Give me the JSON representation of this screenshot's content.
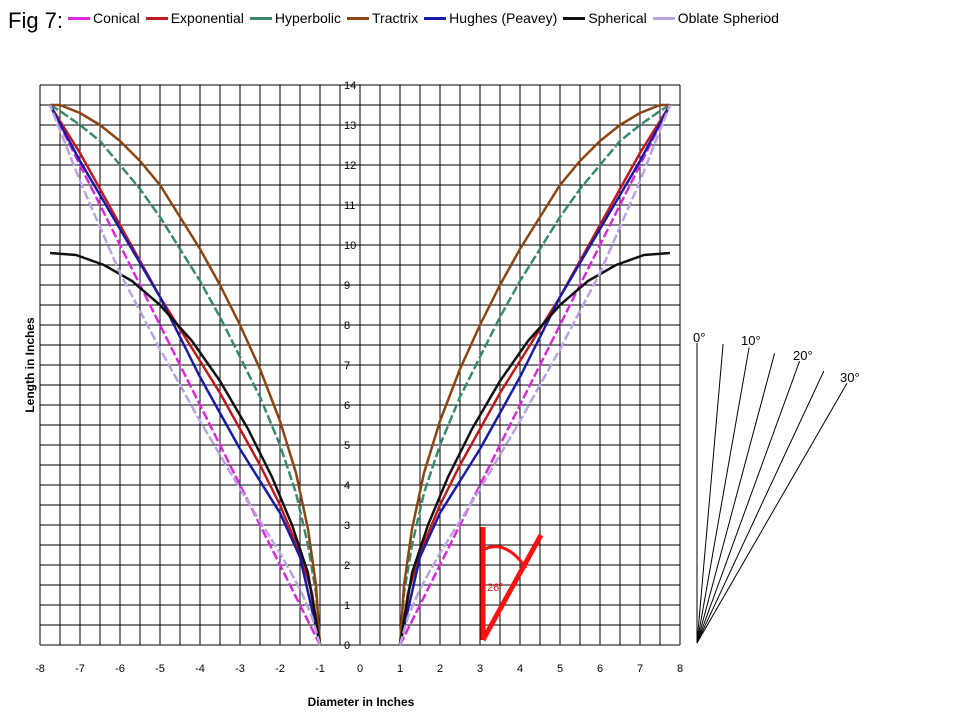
{
  "figure_label": "Fig 7:",
  "chart_data": {
    "type": "line",
    "xlabel": "Diameter in Inches",
    "ylabel": "Length in Inches",
    "xlim": [
      -8,
      8
    ],
    "ylim": [
      0,
      14
    ],
    "x_ticks": [
      "-8",
      "-7",
      "-6",
      "-5",
      "-4",
      "-3",
      "-2",
      "-1",
      "0",
      "1",
      "2",
      "3",
      "4",
      "5",
      "6",
      "7",
      "8"
    ],
    "y_ticks": [
      "0",
      "1",
      "2",
      "3",
      "4",
      "5",
      "6",
      "7",
      "8",
      "9",
      "10",
      "11",
      "12",
      "13",
      "14"
    ],
    "grid": true,
    "legend": "top",
    "series": [
      {
        "name": "Conical",
        "color": "#d92bd9",
        "dashed": true,
        "x": [
          1,
          7.75
        ],
        "y": [
          0,
          13.5
        ]
      },
      {
        "name": "Exponential",
        "color": "#c0191c",
        "x": [
          1,
          1.2,
          1.5,
          2,
          2.5,
          3,
          3.5,
          4,
          4.5,
          5,
          5.5,
          6,
          6.5,
          7,
          7.5,
          7.75
        ],
        "y": [
          0,
          1.3,
          2.3,
          3.5,
          4.5,
          5.4,
          6.3,
          7.1,
          7.9,
          8.7,
          9.6,
          10.5,
          11.4,
          12.3,
          13.1,
          13.5
        ]
      },
      {
        "name": "Hyperbolic",
        "color": "#3a8a6e",
        "dashed": true,
        "x": [
          1,
          1.1,
          1.3,
          1.6,
          2,
          2.5,
          3,
          3.5,
          4,
          4.5,
          5,
          5.5,
          6,
          6.5,
          7,
          7.5,
          7.75
        ],
        "y": [
          0,
          1.3,
          2.5,
          3.8,
          5.0,
          6.2,
          7.2,
          8.2,
          9.1,
          9.9,
          10.7,
          11.4,
          12.0,
          12.6,
          13.0,
          13.35,
          13.5
        ]
      },
      {
        "name": "Tractrix",
        "color": "#8b4513",
        "x": [
          1,
          1.1,
          1.3,
          1.6,
          2,
          2.5,
          3,
          3.5,
          4,
          4.5,
          5,
          5.5,
          6,
          6.5,
          7,
          7.5,
          7.75
        ],
        "y": [
          0,
          1.5,
          2.9,
          4.3,
          5.6,
          6.9,
          8.0,
          9.0,
          9.9,
          10.7,
          11.5,
          12.1,
          12.6,
          13.0,
          13.3,
          13.5,
          13.5
        ]
      },
      {
        "name": "Hughes (Peavey)",
        "color": "#1a1aa8",
        "x": [
          1,
          1.5,
          2,
          3,
          4,
          5,
          6,
          7,
          7.75
        ],
        "y": [
          0,
          2.2,
          3.3,
          4.9,
          6.7,
          8.7,
          10.4,
          12.1,
          13.5
        ]
      },
      {
        "name": "Spherical",
        "color": "#111111",
        "x": [
          1,
          1.3,
          1.7,
          2.2,
          2.8,
          3.5,
          4.2,
          5,
          5.7,
          6.4,
          7.1,
          7.75
        ],
        "y": [
          0,
          1.8,
          3.0,
          4.2,
          5.4,
          6.6,
          7.6,
          8.5,
          9.1,
          9.5,
          9.75,
          9.8
        ]
      },
      {
        "name": "Oblate Spheriod",
        "color": "#b9a2e0",
        "dashed": true,
        "x": [
          1,
          1.2,
          1.5,
          2,
          2.5,
          3,
          4,
          5,
          6,
          7,
          7.75
        ],
        "y": [
          0,
          0.7,
          1.4,
          2.3,
          3.1,
          3.9,
          5.6,
          7.4,
          9.3,
          11.6,
          13.5
        ]
      }
    ]
  },
  "angle_annotation": {
    "label": "26°",
    "color": "#ff1010"
  },
  "angle_guide": {
    "labels": [
      "0°",
      "10°",
      "20°",
      "30°"
    ]
  }
}
